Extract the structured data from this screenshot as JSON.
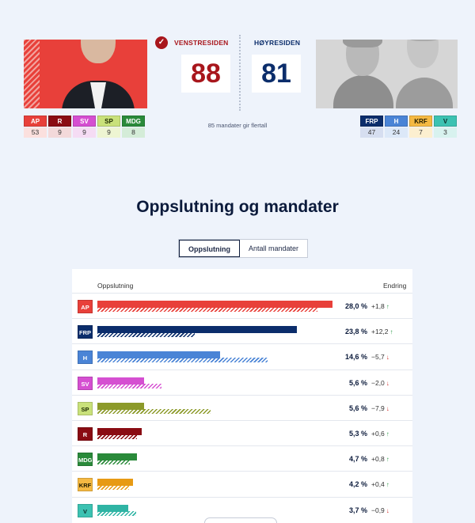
{
  "header": {
    "left_side": {
      "label": "VENSTRESIDEN",
      "seats": "88",
      "color": "#a8161c"
    },
    "right_side": {
      "label": "HØYRESIDEN",
      "seats": "81",
      "color": "#0b2d6b"
    },
    "majority_note": "85 mandater gir flertall",
    "left_parties": [
      {
        "code": "AP",
        "seats": "53",
        "color": "#e8403a",
        "text": "#fff",
        "bg": "#fbe0de"
      },
      {
        "code": "R",
        "seats": "9",
        "color": "#8a0c13",
        "text": "#fff",
        "bg": "#f3d9da"
      },
      {
        "code": "SV",
        "seats": "9",
        "color": "#d54fd1",
        "text": "#fff",
        "bg": "#f5dcf4"
      },
      {
        "code": "SP",
        "seats": "9",
        "color": "#c9e17a",
        "text": "#1d2b00",
        "bg": "#eef5d2"
      },
      {
        "code": "MDG",
        "seats": "8",
        "color": "#2a8a3a",
        "text": "#fff",
        "bg": "#d4ecd8"
      }
    ],
    "right_parties": [
      {
        "code": "FRP",
        "seats": "47",
        "color": "#0b2d6b",
        "text": "#fff",
        "bg": "#d6def0"
      },
      {
        "code": "H",
        "seats": "24",
        "color": "#4a84d6",
        "text": "#fff",
        "bg": "#dce8f8"
      },
      {
        "code": "KRF",
        "seats": "7",
        "color": "#f5b942",
        "text": "#1d1a00",
        "bg": "#fcefd0"
      },
      {
        "code": "V",
        "seats": "3",
        "color": "#3cc2b2",
        "text": "#0d2b27",
        "bg": "#d8f2ef"
      }
    ]
  },
  "section": {
    "title": "Oppslutning og mandater",
    "toggle": {
      "active": "Oppslutning",
      "inactive": "Antall mandater"
    }
  },
  "chart_data": {
    "type": "bar",
    "column_headers": {
      "label": "Oppslutning",
      "change": "Endring"
    },
    "xlim": [
      0,
      28
    ],
    "categories": [
      "AP",
      "FRP",
      "H",
      "SV",
      "SP",
      "R",
      "MDG",
      "KRF",
      "V"
    ],
    "series": [
      {
        "values": [
          28.0,
          23.8,
          14.6,
          5.6,
          5.6,
          5.3,
          4.7,
          4.2,
          3.7
        ]
      },
      {
        "values": [
          26.2,
          11.6,
          20.3,
          7.6,
          13.5,
          4.7,
          3.9,
          3.8,
          4.6
        ]
      }
    ],
    "rows": [
      {
        "code": "AP",
        "pct": "28,0 %",
        "change": "+1,8",
        "dir": "up",
        "color": "#e8403a",
        "badge_text": "#fff",
        "value": 28.0,
        "prev": 26.2
      },
      {
        "code": "FRP",
        "pct": "23,8 %",
        "change": "+12,2",
        "dir": "up",
        "color": "#0b2d6b",
        "badge_text": "#fff",
        "value": 23.8,
        "prev": 11.6
      },
      {
        "code": "H",
        "pct": "14,6 %",
        "change": "−5,7",
        "dir": "down",
        "color": "#4a84d6",
        "badge_text": "#fff",
        "value": 14.6,
        "prev": 20.3
      },
      {
        "code": "SV",
        "pct": "5,6 %",
        "change": "−2,0",
        "dir": "down",
        "color": "#d54fd1",
        "badge_text": "#fff",
        "value": 5.6,
        "prev": 7.6
      },
      {
        "code": "SP",
        "pct": "5,6 %",
        "change": "−7,9",
        "dir": "down",
        "color": "#8c9a2a",
        "badge_text": "#1d2b00",
        "value": 5.6,
        "prev": 13.5,
        "badge_color": "#c9e17a"
      },
      {
        "code": "R",
        "pct": "5,3 %",
        "change": "+0,6",
        "dir": "up",
        "color": "#8a0c13",
        "badge_text": "#fff",
        "value": 5.3,
        "prev": 4.7
      },
      {
        "code": "MDG",
        "pct": "4,7 %",
        "change": "+0,8",
        "dir": "up",
        "color": "#2a8a3a",
        "badge_text": "#fff",
        "value": 4.7,
        "prev": 3.9
      },
      {
        "code": "KRF",
        "pct": "4,2 %",
        "change": "+0,4",
        "dir": "up",
        "color": "#e79a14",
        "badge_text": "#1d1a00",
        "value": 4.2,
        "prev": 3.8,
        "badge_color": "#f5b942"
      },
      {
        "code": "V",
        "pct": "3,7 %",
        "change": "−0,9",
        "dir": "down",
        "color": "#2fb4a4",
        "badge_text": "#0d2b27",
        "value": 3.7,
        "prev": 4.6,
        "badge_color": "#3cc2b2"
      }
    ]
  }
}
